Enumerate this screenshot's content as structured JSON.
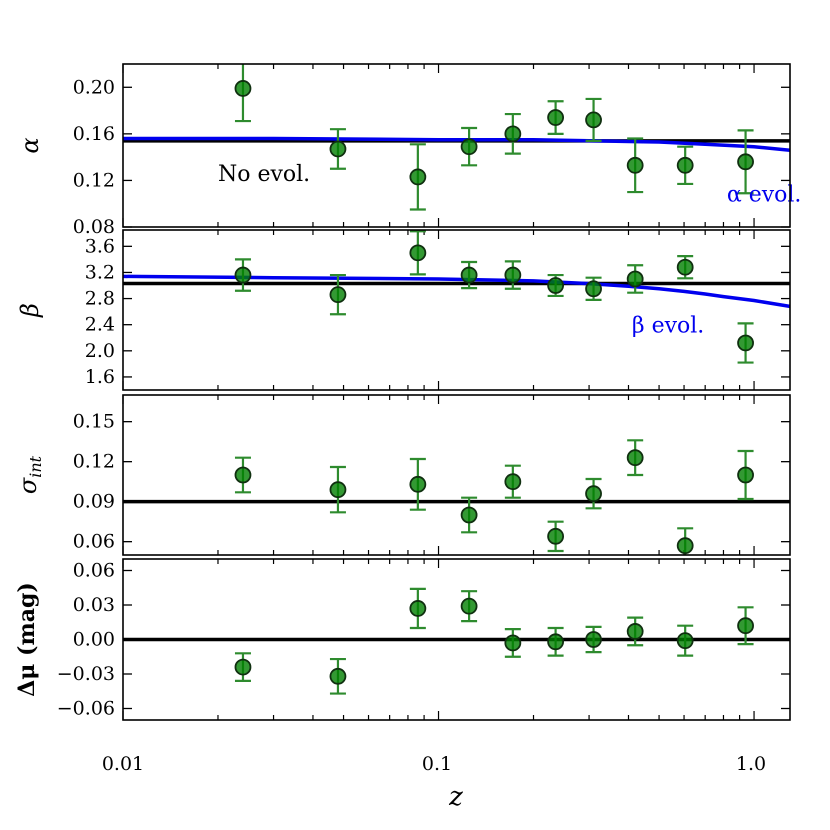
{
  "colors": {
    "model": "#0000ee",
    "marker": "#008000",
    "errorbar": "#2e8b2e",
    "axes": "#000000"
  },
  "chart_data": {
    "type": "scatter",
    "x": [
      0.024,
      0.048,
      0.086,
      0.125,
      0.172,
      0.235,
      0.31,
      0.42,
      0.605,
      0.94
    ],
    "xlabel": "z",
    "xscale": "log",
    "xlim": [
      0.01,
      1.3
    ],
    "xticks": [
      0.01,
      0.1,
      1.0
    ],
    "xtick_labels": [
      "0.01",
      "0.1",
      "1.0"
    ],
    "panels": [
      {
        "id": "alpha",
        "ylabel": "α",
        "ylim": [
          0.08,
          0.22
        ],
        "yticks": [
          0.08,
          0.12,
          0.16,
          0.2
        ],
        "ytick_labels": [
          "0.08",
          "0.12",
          "0.16",
          "0.20"
        ],
        "values": [
          0.199,
          0.147,
          0.123,
          0.149,
          0.16,
          0.174,
          0.172,
          0.133,
          0.133,
          0.136
        ],
        "errors": [
          0.028,
          0.017,
          0.028,
          0.016,
          0.017,
          0.014,
          0.018,
          0.023,
          0.016,
          0.027
        ],
        "hline": 0.154,
        "curve": {
          "x": [
            0.01,
            0.03,
            0.1,
            0.2,
            0.3,
            0.5,
            0.7,
            1.0,
            1.3
          ],
          "y": [
            0.156,
            0.156,
            0.155,
            0.155,
            0.154,
            0.153,
            0.151,
            0.149,
            0.146
          ]
        },
        "annotations": [
          {
            "text": "No evol.",
            "color": "#000000",
            "x": 0.02,
            "y": 0.1195
          },
          {
            "text": "α evol.",
            "color": "#0000ee",
            "x": 0.82,
            "y": 0.102
          }
        ]
      },
      {
        "id": "beta",
        "ylabel": "β",
        "ylim": [
          1.4,
          3.85
        ],
        "yticks": [
          1.6,
          2.0,
          2.4,
          2.8,
          3.2,
          3.6
        ],
        "ytick_labels": [
          "1.6",
          "2.0",
          "2.4",
          "2.8",
          "3.2",
          "3.6"
        ],
        "values": [
          3.16,
          2.86,
          3.5,
          3.16,
          3.16,
          3.0,
          2.95,
          3.1,
          3.28,
          2.12
        ],
        "errors": [
          0.24,
          0.3,
          0.33,
          0.2,
          0.21,
          0.16,
          0.17,
          0.21,
          0.17,
          0.3
        ],
        "hline": 3.03,
        "curve": {
          "x": [
            0.01,
            0.03,
            0.1,
            0.2,
            0.3,
            0.4,
            0.5,
            0.6,
            0.7,
            0.8,
            1.0,
            1.3
          ],
          "y": [
            3.14,
            3.12,
            3.1,
            3.07,
            3.03,
            2.99,
            2.95,
            2.91,
            2.87,
            2.83,
            2.77,
            2.68
          ]
        },
        "annotations": [
          {
            "text": "β evol.",
            "color": "#0000ee",
            "x": 0.41,
            "y": 2.28
          }
        ]
      },
      {
        "id": "sigma",
        "ylabel": "σint",
        "ylim": [
          0.05,
          0.17
        ],
        "yticks": [
          0.06,
          0.09,
          0.12,
          0.15
        ],
        "ytick_labels": [
          "0.06",
          "0.09",
          "0.12",
          "0.15"
        ],
        "values": [
          0.11,
          0.099,
          0.103,
          0.08,
          0.105,
          0.064,
          0.096,
          0.123,
          0.057,
          0.11
        ],
        "errors": [
          0.013,
          0.017,
          0.019,
          0.013,
          0.012,
          0.011,
          0.011,
          0.013,
          0.013,
          0.018
        ],
        "hline": 0.09,
        "curve": null,
        "annotations": []
      },
      {
        "id": "dmu",
        "ylabel": "Δμ (mag)",
        "ylim": [
          -0.07,
          0.07
        ],
        "yticks": [
          -0.06,
          -0.03,
          0.0,
          0.03,
          0.06
        ],
        "ytick_labels": [
          "−0.06",
          "−0.03",
          "0.00",
          "0.03",
          "0.06"
        ],
        "values": [
          -0.024,
          -0.032,
          0.027,
          0.029,
          -0.003,
          -0.002,
          0.0,
          0.007,
          -0.001,
          0.012
        ],
        "errors": [
          0.012,
          0.015,
          0.017,
          0.013,
          0.012,
          0.012,
          0.011,
          0.012,
          0.013,
          0.016
        ],
        "hline": 0.0,
        "curve": null,
        "annotations": []
      }
    ]
  }
}
